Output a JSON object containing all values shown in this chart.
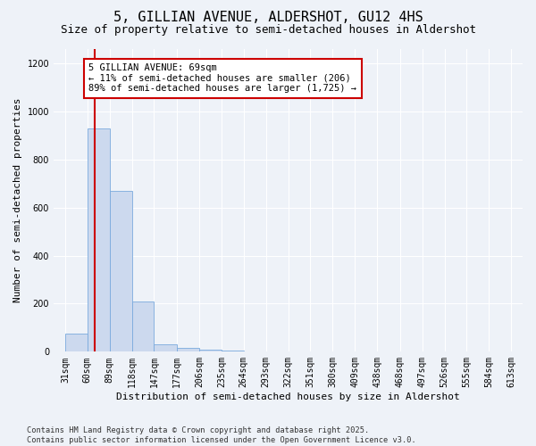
{
  "title1": "5, GILLIAN AVENUE, ALDERSHOT, GU12 4HS",
  "title2": "Size of property relative to semi-detached houses in Aldershot",
  "xlabel": "Distribution of semi-detached houses by size in Aldershot",
  "ylabel": "Number of semi-detached properties",
  "bins": [
    31,
    60,
    89,
    118,
    147,
    177,
    206,
    235,
    264,
    293,
    322,
    351,
    380,
    409,
    438,
    468,
    497,
    526,
    555,
    584,
    613
  ],
  "bar_heights": [
    75,
    930,
    670,
    210,
    30,
    15,
    10,
    4,
    0,
    0,
    0,
    0,
    0,
    0,
    0,
    0,
    0,
    0,
    0,
    0
  ],
  "bar_facecolor": "#ccd9ee",
  "bar_edgecolor": "#7aaadd",
  "vline_x": 69,
  "vline_color": "#cc0000",
  "annotation_text": "5 GILLIAN AVENUE: 69sqm\n← 11% of semi-detached houses are smaller (206)\n89% of semi-detached houses are larger (1,725) →",
  "annotation_box_edgecolor": "#cc0000",
  "annotation_box_facecolor": "#ffffff",
  "ylim": [
    0,
    1260
  ],
  "yticks": [
    0,
    200,
    400,
    600,
    800,
    1000,
    1200
  ],
  "background_color": "#eef2f8",
  "footer_text": "Contains HM Land Registry data © Crown copyright and database right 2025.\nContains public sector information licensed under the Open Government Licence v3.0.",
  "title1_fontsize": 11,
  "title2_fontsize": 9,
  "xlabel_fontsize": 8,
  "ylabel_fontsize": 8,
  "tick_fontsize": 7,
  "annotation_fontsize": 7.5,
  "grid_color": "#ffffff",
  "xlim": [
    16,
    628
  ]
}
